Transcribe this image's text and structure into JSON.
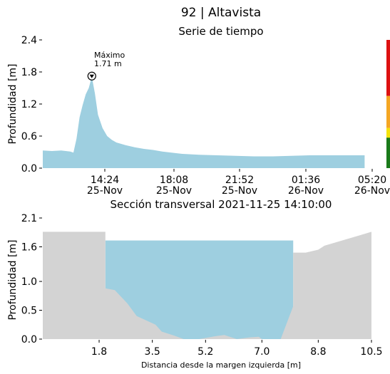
{
  "title": "92 | Altavista",
  "colors": {
    "fill": "#9ecfe0",
    "ground": "#d3d3d3",
    "band_red": "#dd1111",
    "band_orange": "#f5a623",
    "band_yellow": "#f5e30c",
    "band_green": "#1a7a1a"
  },
  "chart_data": [
    {
      "type": "area",
      "title": "Serie de tiempo",
      "ylabel": "Profundidad [m]",
      "xlabel": "",
      "ylim": [
        0,
        2.4
      ],
      "y_ticks": [
        "0.0",
        "0.6",
        "1.2",
        "1.8",
        "2.4"
      ],
      "x_ticks": [
        {
          "time": "14:24",
          "date": "25-Nov"
        },
        {
          "time": "18:08",
          "date": "25-Nov"
        },
        {
          "time": "21:52",
          "date": "25-Nov"
        },
        {
          "time": "01:36",
          "date": "26-Nov"
        },
        {
          "time": "05:20",
          "date": "26-Nov"
        }
      ],
      "x_range": [
        "2021-11-25T11:30",
        "2021-11-26T05:20"
      ],
      "annotation": {
        "label": "Máximo",
        "value_text": "1.71 m",
        "time": "2021-11-25T14:10",
        "value": 1.71
      },
      "series": [
        {
          "x": [
            "2021-11-25T11:30",
            "2021-11-25T12:00",
            "2021-11-25T12:30",
            "2021-11-25T13:00",
            "2021-11-25T13:10",
            "2021-11-25T13:20",
            "2021-11-25T13:30",
            "2021-11-25T13:40",
            "2021-11-25T13:50",
            "2021-11-25T14:00",
            "2021-11-25T14:10",
            "2021-11-25T14:20",
            "2021-11-25T14:30",
            "2021-11-25T14:45",
            "2021-11-25T15:00",
            "2021-11-25T15:15",
            "2021-11-25T15:30",
            "2021-11-25T16:00",
            "2021-11-25T16:30",
            "2021-11-25T17:00",
            "2021-11-25T17:30",
            "2021-11-25T18:00",
            "2021-11-25T19:00",
            "2021-11-25T20:00",
            "2021-11-25T21:00",
            "2021-11-25T22:00",
            "2021-11-25T23:00",
            "2021-11-26T00:00",
            "2021-11-26T01:00",
            "2021-11-26T02:00",
            "2021-11-26T03:00",
            "2021-11-26T04:00",
            "2021-11-26T05:00"
          ],
          "values": [
            0.33,
            0.32,
            0.33,
            0.31,
            0.29,
            0.55,
            0.95,
            1.18,
            1.38,
            1.5,
            1.71,
            1.4,
            1.0,
            0.75,
            0.6,
            0.53,
            0.48,
            0.43,
            0.39,
            0.36,
            0.34,
            0.31,
            0.27,
            0.25,
            0.24,
            0.23,
            0.22,
            0.22,
            0.23,
            0.24,
            0.24,
            0.24,
            0.24
          ]
        }
      ],
      "level_bands": [
        {
          "from": 1.35,
          "to": 2.4,
          "color": "#dd1111"
        },
        {
          "from": 0.75,
          "to": 1.35,
          "color": "#f5a623"
        },
        {
          "from": 0.57,
          "to": 0.75,
          "color": "#f5e30c"
        },
        {
          "from": 0.0,
          "to": 0.57,
          "color": "#1a7a1a"
        }
      ]
    },
    {
      "type": "area",
      "title": "Sección transversal 2021-11-25 14:10:00",
      "xlabel": "Distancia desde la margen izquierda [m]",
      "ylabel": "Profundidad [m]",
      "ylim": [
        0,
        2.1
      ],
      "xlim": [
        0,
        10.5
      ],
      "y_ticks": [
        "0.0",
        "0.5",
        "1.0",
        "1.6",
        "2.1"
      ],
      "x_ticks": [
        "1.8",
        "3.5",
        "5.2",
        "7.0",
        "8.8",
        "10.5"
      ],
      "water_level": 1.71,
      "water_x_end": 8.0,
      "terrain": {
        "x": [
          0,
          2.0,
          2.0,
          2.3,
          2.7,
          3.0,
          3.6,
          3.8,
          4.2,
          4.5,
          5.0,
          5.5,
          5.8,
          6.2,
          6.6,
          6.9,
          7.0,
          7.3,
          7.6,
          8.0,
          8.0,
          8.4,
          8.8,
          9.0,
          10.5
        ],
        "y": [
          1.86,
          1.86,
          0.88,
          0.85,
          0.62,
          0.4,
          0.25,
          0.13,
          0.06,
          0.0,
          0.0,
          0.05,
          0.07,
          0.0,
          0.03,
          0.04,
          0.0,
          0.0,
          0.0,
          0.57,
          1.5,
          1.5,
          1.55,
          1.62,
          1.86
        ]
      }
    }
  ]
}
